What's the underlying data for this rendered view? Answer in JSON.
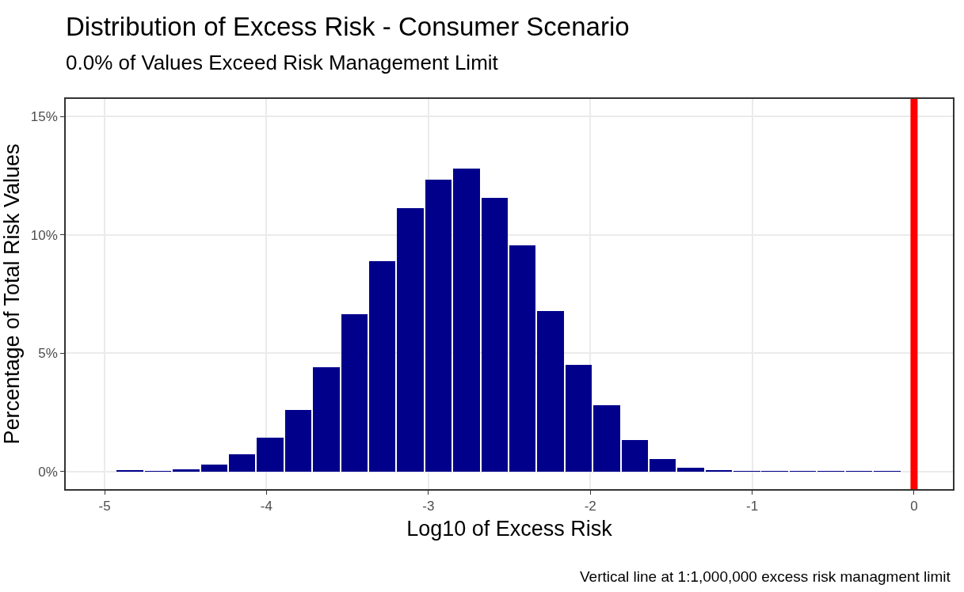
{
  "chart_data": {
    "type": "histogram",
    "title": "Distribution of Excess Risk - Consumer Scenario",
    "subtitle": "0.0% of Values Exceed Risk Management Limit",
    "xlabel": "Log10 of Excess Risk",
    "ylabel": "Percentage of Total Risk Values",
    "annotations": [
      "Vertical line at 1:1,000,000 excess risk managment limit"
    ],
    "bins": [
      -4.93,
      -4.757,
      -4.584,
      -4.41,
      -4.237,
      -4.064,
      -3.891,
      -3.717,
      -3.544,
      -3.371,
      -3.198,
      -3.025,
      -2.851,
      -2.678,
      -2.505,
      -2.332,
      -2.159,
      -1.985,
      -1.812,
      -1.639,
      -1.466,
      -1.293,
      -1.119,
      -0.946,
      -0.773,
      -0.6,
      -0.427,
      -0.253,
      -0.08
    ],
    "values": [
      0.02,
      0.01,
      0.09,
      0.29,
      0.73,
      1.43,
      2.59,
      4.4,
      6.63,
      8.88,
      11.12,
      12.33,
      12.79,
      11.57,
      9.57,
      6.79,
      4.52,
      2.79,
      1.31,
      0.53,
      0.15,
      0.03,
      0.01,
      0.01,
      0.01,
      0.01,
      0.01,
      0.01
    ],
    "color": "#00008b",
    "xlim": [
      -5.24,
      0.24
    ],
    "xticks": [
      -5,
      -4,
      -3,
      -2,
      -1,
      0
    ],
    "ylim": [
      -0.75,
      15.75
    ],
    "yticks": [
      {
        "value": 0,
        "label": "0%"
      },
      {
        "value": 5,
        "label": "5%"
      },
      {
        "value": 10,
        "label": "10%"
      },
      {
        "value": 15,
        "label": "15%"
      }
    ],
    "ref_lines": [
      {
        "axis": "x",
        "value": 0,
        "color": "#ff0000"
      }
    ],
    "grid": true
  }
}
